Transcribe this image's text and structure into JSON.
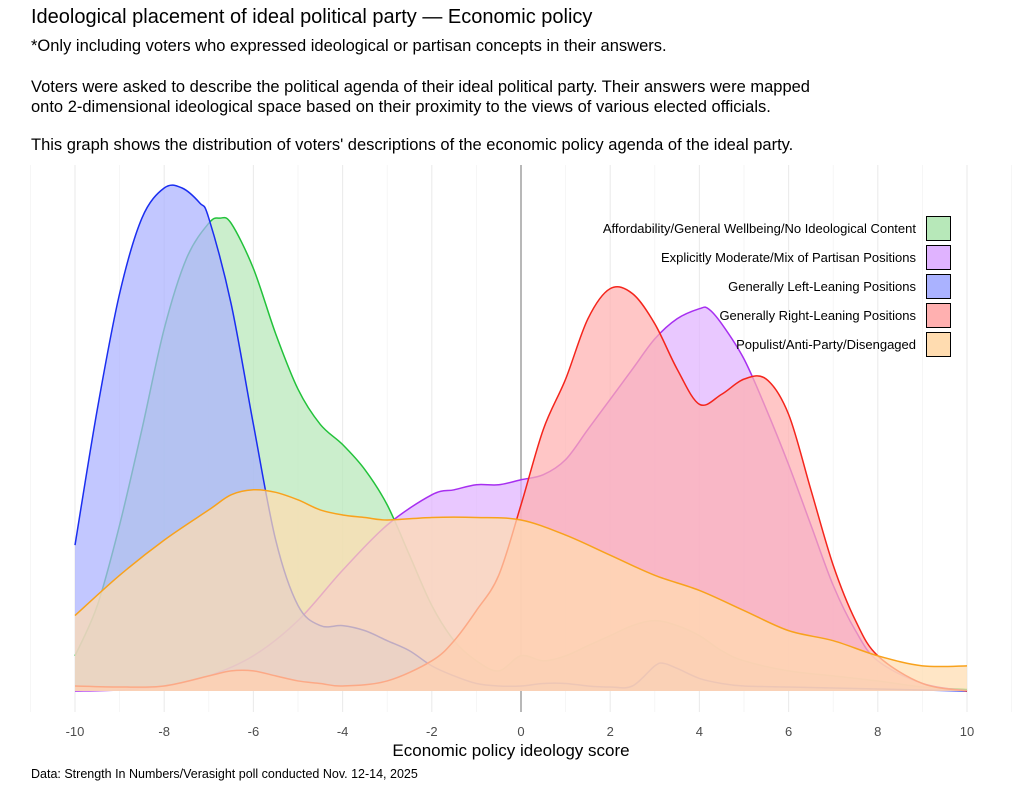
{
  "title": "Ideological placement of ideal political party — Economic policy",
  "subtitle_lines": [
    "*Only including voters who expressed ideological or partisan concepts in their answers.",
    "Voters were asked to describe the political agenda of their ideal political party. Their answers were mapped",
    "onto 2-dimensional ideological space based on their proximity to the views of various elected officials.",
    "This graph shows the distribution of voters' descriptions of the economic policy agenda of the ideal party."
  ],
  "source": "Data: Strength In Numbers/Verasight poll conducted Nov. 12-14, 2025",
  "chart_data": {
    "type": "area",
    "subtype": "density",
    "xlabel": "Economic policy ideology score",
    "ylabel": "",
    "xlim": [
      -10,
      10
    ],
    "ylim": [
      0,
      1.0
    ],
    "x_ticks": [
      -10,
      -8,
      -6,
      -4,
      -2,
      0,
      2,
      4,
      6,
      8,
      10
    ],
    "x_tick_labels": [
      "-10",
      "-8",
      "-6",
      "-4",
      "-2",
      "0",
      "2",
      "4",
      "6",
      "8",
      "10"
    ],
    "reference_line_x": 0,
    "legend_position": "top-right",
    "series": [
      {
        "name": "Affordability/General Wellbeing/No Ideological Content",
        "color": "#22c23a",
        "fill": "#b7e8b9",
        "x": [
          -10,
          -9.5,
          -9,
          -8.5,
          -8,
          -7.5,
          -7,
          -6.75,
          -6.5,
          -6,
          -5.5,
          -5,
          -4.5,
          -4,
          -3.5,
          -3,
          -2.5,
          -2,
          -1.5,
          -1,
          -0.5,
          0,
          0.5,
          1,
          1.5,
          2,
          2.5,
          3,
          3.5,
          4,
          4.5,
          5,
          6,
          7,
          8,
          9,
          10
        ],
        "y": [
          0.07,
          0.17,
          0.33,
          0.52,
          0.72,
          0.86,
          0.93,
          0.94,
          0.93,
          0.84,
          0.71,
          0.6,
          0.53,
          0.49,
          0.44,
          0.37,
          0.27,
          0.17,
          0.1,
          0.06,
          0.04,
          0.07,
          0.06,
          0.07,
          0.09,
          0.11,
          0.13,
          0.14,
          0.13,
          0.11,
          0.08,
          0.06,
          0.04,
          0.03,
          0.02,
          0.008,
          0.003
        ]
      },
      {
        "name": "Explicitly Moderate/Mix of Partisan Positions",
        "color": "#a72ff0",
        "fill": "#e0b3ff",
        "x": [
          -10,
          -9,
          -8,
          -7,
          -6,
          -5,
          -4,
          -3,
          -2,
          -1.5,
          -1,
          -0.5,
          0,
          0.5,
          1,
          1.5,
          2,
          2.5,
          3,
          3.5,
          4,
          4.2,
          4.5,
          5,
          5.5,
          6,
          6.5,
          7,
          7.5,
          8,
          9,
          10
        ],
        "y": [
          0.0,
          0.002,
          0.01,
          0.03,
          0.07,
          0.14,
          0.24,
          0.33,
          0.39,
          0.4,
          0.41,
          0.41,
          0.42,
          0.43,
          0.46,
          0.52,
          0.58,
          0.64,
          0.7,
          0.74,
          0.76,
          0.76,
          0.73,
          0.66,
          0.56,
          0.45,
          0.33,
          0.21,
          0.12,
          0.06,
          0.015,
          0.0
        ]
      },
      {
        "name": "Generally Left-Leaning Positions",
        "color": "#1a2ef0",
        "fill": "#aab2ff",
        "x": [
          -10,
          -9.5,
          -9,
          -8.5,
          -8,
          -7.6,
          -7.2,
          -7,
          -6.5,
          -6,
          -5.5,
          -5,
          -4.5,
          -4,
          -3.5,
          -3,
          -2.5,
          -2,
          -1.5,
          -1,
          -0.5,
          0,
          0.5,
          1,
          1.5,
          2,
          2.5,
          3,
          3.2,
          3.5,
          4,
          4.5,
          5,
          6,
          7,
          8,
          9,
          10
        ],
        "y": [
          0.29,
          0.56,
          0.79,
          0.94,
          1.0,
          1.0,
          0.97,
          0.94,
          0.77,
          0.53,
          0.3,
          0.17,
          0.13,
          0.13,
          0.12,
          0.1,
          0.08,
          0.05,
          0.03,
          0.015,
          0.01,
          0.01,
          0.015,
          0.015,
          0.01,
          0.008,
          0.01,
          0.05,
          0.055,
          0.045,
          0.025,
          0.015,
          0.01,
          0.008,
          0.006,
          0.004,
          0.002,
          0.0
        ]
      },
      {
        "name": "Generally Right-Leaning Positions",
        "color": "#f4251c",
        "fill": "#ffb0b0",
        "x": [
          -10,
          -9,
          -8,
          -7,
          -6.5,
          -6,
          -5.5,
          -5,
          -4.5,
          -4,
          -3,
          -2,
          -1.5,
          -1,
          -0.5,
          0,
          0.5,
          1,
          1.5,
          2,
          2.5,
          3,
          3.5,
          4,
          4.5,
          5,
          5.5,
          6,
          6.5,
          7,
          7.5,
          8,
          9,
          10
        ],
        "y": [
          0.01,
          0.008,
          0.01,
          0.03,
          0.04,
          0.04,
          0.03,
          0.02,
          0.015,
          0.01,
          0.02,
          0.06,
          0.1,
          0.16,
          0.23,
          0.37,
          0.52,
          0.62,
          0.74,
          0.8,
          0.79,
          0.73,
          0.64,
          0.57,
          0.59,
          0.62,
          0.62,
          0.55,
          0.4,
          0.25,
          0.14,
          0.07,
          0.015,
          0.0
        ]
      },
      {
        "name": "Populist/Anti-Party/Disengaged",
        "color": "#f8a21c",
        "fill": "#ffdcb0",
        "x": [
          -10,
          -9,
          -8,
          -7,
          -6.5,
          -6,
          -5.5,
          -5,
          -4.5,
          -4,
          -3.5,
          -3,
          -2,
          -1,
          0,
          1,
          2,
          3,
          4,
          5,
          6,
          7,
          8,
          9,
          10
        ],
        "y": [
          0.15,
          0.23,
          0.3,
          0.36,
          0.39,
          0.4,
          0.395,
          0.38,
          0.36,
          0.35,
          0.345,
          0.34,
          0.345,
          0.345,
          0.34,
          0.31,
          0.27,
          0.23,
          0.2,
          0.16,
          0.12,
          0.1,
          0.07,
          0.05,
          0.05
        ]
      }
    ]
  }
}
